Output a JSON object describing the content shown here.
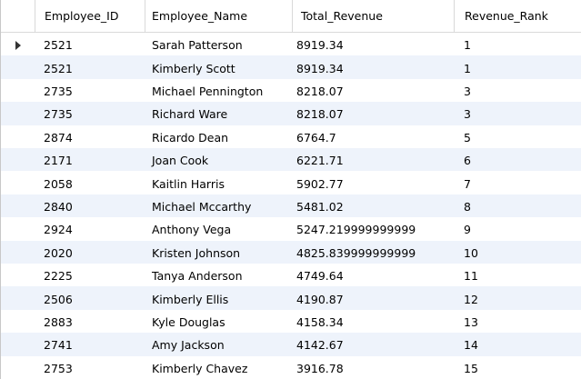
{
  "columns": [
    "Employee_ID",
    "Employee_Name",
    "Total_Revenue",
    "Revenue_Rank"
  ],
  "current_row_indicator": "row-pointer-icon",
  "rows": [
    {
      "id": "2521",
      "name": "Sarah Patterson",
      "revenue": "8919.34",
      "rank": "1"
    },
    {
      "id": "2521",
      "name": "Kimberly Scott",
      "revenue": "8919.34",
      "rank": "1"
    },
    {
      "id": "2735",
      "name": "Michael Pennington",
      "revenue": "8218.07",
      "rank": "3"
    },
    {
      "id": "2735",
      "name": "Richard Ware",
      "revenue": "8218.07",
      "rank": "3"
    },
    {
      "id": "2874",
      "name": "Ricardo Dean",
      "revenue": "6764.7",
      "rank": "5"
    },
    {
      "id": "2171",
      "name": "Joan Cook",
      "revenue": "6221.71",
      "rank": "6"
    },
    {
      "id": "2058",
      "name": "Kaitlin Harris",
      "revenue": "5902.77",
      "rank": "7"
    },
    {
      "id": "2840",
      "name": "Michael Mccarthy",
      "revenue": "5481.02",
      "rank": "8"
    },
    {
      "id": "2924",
      "name": "Anthony Vega",
      "revenue": "5247.219999999999",
      "rank": "9"
    },
    {
      "id": "2020",
      "name": "Kristen Johnson",
      "revenue": "4825.839999999999",
      "rank": "10"
    },
    {
      "id": "2225",
      "name": "Tanya Anderson",
      "revenue": "4749.64",
      "rank": "11"
    },
    {
      "id": "2506",
      "name": "Kimberly Ellis",
      "revenue": "4190.87",
      "rank": "12"
    },
    {
      "id": "2883",
      "name": "Kyle Douglas",
      "revenue": "4158.34",
      "rank": "13"
    },
    {
      "id": "2741",
      "name": "Amy Jackson",
      "revenue": "4142.67",
      "rank": "14"
    },
    {
      "id": "2753",
      "name": "Kimberly Chavez",
      "revenue": "3916.78",
      "rank": "15"
    }
  ],
  "colors": {
    "alt_row": "#eef3fb",
    "grid_line": "#d9d9d9"
  }
}
